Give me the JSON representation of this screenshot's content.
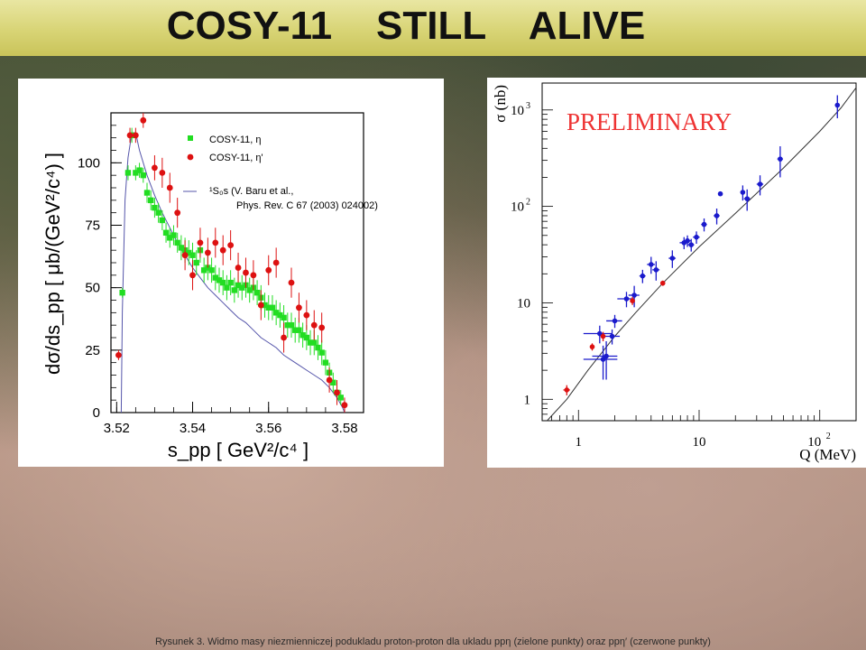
{
  "title": "COSY-11    STILL    ALIVE",
  "caption": "Rysunek 3. Widmo masy niezmienniczej podukladu proton-proton dla ukladu ppη (zielone punkty) oraz ppη′ (czerwone punkty)",
  "chart_data": [
    {
      "type": "scatter",
      "xlabel": "s_pp [ GeV²/c⁴ ]",
      "ylabel": "dσ/ds_pp [ μb/(GeV²/c⁴) ]",
      "xlim": [
        3.5185,
        3.585
      ],
      "ylim": [
        0,
        120
      ],
      "xticks": [
        "3.52",
        "3.54",
        "3.56",
        "3.58"
      ],
      "xtick_values": [
        3.52,
        3.54,
        3.56,
        3.58
      ],
      "yticks": [
        "0",
        "25",
        "50",
        "75",
        "100"
      ],
      "ytick_values": [
        0,
        25,
        50,
        75,
        100
      ],
      "legend": {
        "position": "top-right",
        "items": [
          {
            "label": "COSY-11, η",
            "color": "#22dd22",
            "marker": "square"
          },
          {
            "label": "COSY-11, η'",
            "color": "#dd1111",
            "marker": "circle"
          },
          {
            "label": "¹S₀s (V. Baru et al.,",
            "label2": "Phys. Rev. C 67 (2003) 024002)",
            "color": "#5555aa",
            "marker": "line"
          }
        ]
      },
      "series": [
        {
          "name": "COSY-11, η",
          "color": "#22dd22",
          "points": [
            [
              3.5215,
              48,
              2
            ],
            [
              3.523,
              96,
              3
            ],
            [
              3.524,
              111,
              3
            ],
            [
              3.525,
              96,
              3
            ],
            [
              3.526,
              97,
              3
            ],
            [
              3.527,
              95,
              3
            ],
            [
              3.528,
              88,
              4
            ],
            [
              3.529,
              85,
              4
            ],
            [
              3.53,
              82,
              4
            ],
            [
              3.531,
              80,
              4
            ],
            [
              3.532,
              77,
              4
            ],
            [
              3.533,
              72,
              4
            ],
            [
              3.534,
              70,
              4
            ],
            [
              3.535,
              71,
              4
            ],
            [
              3.536,
              68,
              4
            ],
            [
              3.537,
              66,
              5
            ],
            [
              3.538,
              65,
              5
            ],
            [
              3.539,
              64,
              5
            ],
            [
              3.54,
              63,
              5
            ],
            [
              3.541,
              60,
              5
            ],
            [
              3.542,
              65,
              5
            ],
            [
              3.543,
              57,
              5
            ],
            [
              3.544,
              58,
              5
            ],
            [
              3.545,
              57,
              5
            ],
            [
              3.546,
              54,
              5
            ],
            [
              3.547,
              53,
              5
            ],
            [
              3.548,
              52,
              5
            ],
            [
              3.549,
              50,
              5
            ],
            [
              3.55,
              52,
              5
            ],
            [
              3.551,
              49,
              5
            ],
            [
              3.552,
              51,
              5
            ],
            [
              3.553,
              50,
              5
            ],
            [
              3.554,
              51,
              5
            ],
            [
              3.555,
              49,
              5
            ],
            [
              3.556,
              50,
              5
            ],
            [
              3.557,
              48,
              5
            ],
            [
              3.558,
              46,
              5
            ],
            [
              3.559,
              43,
              5
            ],
            [
              3.56,
              42,
              5
            ],
            [
              3.561,
              42,
              5
            ],
            [
              3.562,
              40,
              5
            ],
            [
              3.563,
              39,
              5
            ],
            [
              3.564,
              38,
              5
            ],
            [
              3.565,
              35,
              5
            ],
            [
              3.566,
              35,
              5
            ],
            [
              3.567,
              33,
              5
            ],
            [
              3.568,
              33,
              5
            ],
            [
              3.569,
              31,
              5
            ],
            [
              3.57,
              30,
              5
            ],
            [
              3.571,
              28,
              5
            ],
            [
              3.572,
              28,
              5
            ],
            [
              3.573,
              26,
              5
            ],
            [
              3.574,
              24,
              5
            ],
            [
              3.575,
              20,
              5
            ],
            [
              3.576,
              16,
              4
            ],
            [
              3.577,
              12,
              4
            ],
            [
              3.578,
              8,
              4
            ],
            [
              3.579,
              6,
              3
            ]
          ]
        },
        {
          "name": "COSY-11, η'",
          "color": "#dd1111",
          "points": [
            [
              3.5205,
              23,
              2
            ],
            [
              3.5235,
              111,
              3
            ],
            [
              3.525,
              111,
              3
            ],
            [
              3.527,
              117,
              3
            ],
            [
              3.53,
              98,
              5
            ],
            [
              3.532,
              96,
              6
            ],
            [
              3.534,
              90,
              6
            ],
            [
              3.536,
              80,
              6
            ],
            [
              3.538,
              63,
              6
            ],
            [
              3.54,
              55,
              6
            ],
            [
              3.542,
              68,
              6
            ],
            [
              3.544,
              64,
              6
            ],
            [
              3.546,
              68,
              6
            ],
            [
              3.548,
              65,
              6
            ],
            [
              3.55,
              67,
              6
            ],
            [
              3.552,
              58,
              6
            ],
            [
              3.554,
              56,
              6
            ],
            [
              3.556,
              55,
              6
            ],
            [
              3.558,
              43,
              6
            ],
            [
              3.56,
              57,
              6
            ],
            [
              3.562,
              60,
              6
            ],
            [
              3.564,
              30,
              6
            ],
            [
              3.566,
              52,
              6
            ],
            [
              3.568,
              42,
              6
            ],
            [
              3.57,
              39,
              6
            ],
            [
              3.572,
              35,
              6
            ],
            [
              3.574,
              34,
              6
            ],
            [
              3.576,
              13,
              5
            ],
            [
              3.578,
              8,
              5
            ],
            [
              3.58,
              3,
              3
            ]
          ]
        }
      ],
      "curve": {
        "name": "¹S₀s",
        "color": "#5555aa",
        "points": [
          [
            3.5212,
            0
          ],
          [
            3.5215,
            40
          ],
          [
            3.5222,
            85
          ],
          [
            3.523,
            102
          ],
          [
            3.524,
            112
          ],
          [
            3.525,
            112
          ],
          [
            3.526,
            105
          ],
          [
            3.528,
            95
          ],
          [
            3.53,
            87
          ],
          [
            3.532,
            80
          ],
          [
            3.534,
            74
          ],
          [
            3.536,
            68
          ],
          [
            3.538,
            63
          ],
          [
            3.54,
            58
          ],
          [
            3.542,
            54
          ],
          [
            3.544,
            50
          ],
          [
            3.546,
            47
          ],
          [
            3.548,
            44
          ],
          [
            3.55,
            41
          ],
          [
            3.552,
            38
          ],
          [
            3.554,
            36
          ],
          [
            3.556,
            33
          ],
          [
            3.558,
            30
          ],
          [
            3.56,
            28
          ],
          [
            3.562,
            26
          ],
          [
            3.564,
            23
          ],
          [
            3.566,
            21
          ],
          [
            3.568,
            19
          ],
          [
            3.57,
            17
          ],
          [
            3.572,
            15
          ],
          [
            3.574,
            13
          ],
          [
            3.576,
            10
          ],
          [
            3.578,
            6
          ],
          [
            3.5795,
            2
          ],
          [
            3.58,
            0
          ]
        ]
      }
    },
    {
      "type": "scatter",
      "annotation": "PRELIMINARY",
      "xlabel": "Q (MeV)",
      "ylabel": "σ (nb)",
      "xscale": "log",
      "yscale": "log",
      "xlim": [
        0.5,
        200
      ],
      "ylim": [
        0.6,
        1900
      ],
      "xtick_labels": [
        {
          "v": 1,
          "t": "1"
        },
        {
          "v": 10,
          "t": "10"
        },
        {
          "v": 100,
          "t": "10",
          "sup": "2"
        }
      ],
      "ytick_labels": [
        {
          "v": 1,
          "t": "1"
        },
        {
          "v": 10,
          "t": "10"
        },
        {
          "v": 100,
          "t": "10",
          "sup": "2"
        },
        {
          "v": 1000,
          "t": "10",
          "sup": "3"
        }
      ],
      "series": [
        {
          "name": "blue",
          "color": "#1a1acc",
          "points": [
            [
              1.5,
              4.8,
              0.4,
              1.0
            ],
            [
              1.6,
              2.6,
              0.5,
              1.0
            ],
            [
              1.7,
              2.8,
              0.4,
              1.2
            ],
            [
              1.9,
              4.5,
              0.3,
              0.8
            ],
            [
              2.0,
              6.5,
              0.3,
              1.0
            ],
            [
              2.5,
              11,
              0.4,
              2.0
            ],
            [
              2.9,
              12,
              0.3,
              3.0
            ],
            [
              3.4,
              19,
              0.2,
              3
            ],
            [
              4.0,
              25,
              0.3,
              5
            ],
            [
              4.4,
              22,
              0.3,
              5
            ],
            [
              6.0,
              29,
              0.4,
              6
            ],
            [
              7.5,
              42,
              0.6,
              6
            ],
            [
              8.0,
              44,
              0.6,
              6
            ],
            [
              8.6,
              40,
              0.5,
              6
            ],
            [
              9.5,
              48,
              0.6,
              7
            ],
            [
              11,
              65,
              0.6,
              10
            ],
            [
              14,
              80,
              0.8,
              15
            ],
            [
              15,
              135,
              0.4,
              6
            ],
            [
              23,
              140,
              1.0,
              25
            ],
            [
              25,
              120,
              1.5,
              30
            ],
            [
              32,
              170,
              2.0,
              40
            ],
            [
              47,
              310,
              2.5,
              110
            ],
            [
              140,
              1120,
              6,
              300
            ]
          ]
        },
        {
          "name": "red",
          "color": "#dd1111",
          "points": [
            [
              0.8,
              1.25,
              0.05,
              0.15
            ],
            [
              1.3,
              3.5,
              0.05,
              0.3
            ],
            [
              1.6,
              4.5,
              0.05,
              0.5
            ],
            [
              2.8,
              10.5,
              0.05,
              1.0
            ],
            [
              5.0,
              16,
              0.1,
              1.0
            ]
          ]
        }
      ],
      "curve": {
        "color": "#333",
        "points": [
          [
            0.55,
            0.55
          ],
          [
            0.8,
            1.0
          ],
          [
            1.2,
            2.0
          ],
          [
            2.0,
            4.5
          ],
          [
            3.0,
            8
          ],
          [
            5,
            16
          ],
          [
            10,
            38
          ],
          [
            20,
            85
          ],
          [
            50,
            250
          ],
          [
            100,
            600
          ],
          [
            150,
            1050
          ],
          [
            200,
            1700
          ]
        ]
      }
    }
  ]
}
